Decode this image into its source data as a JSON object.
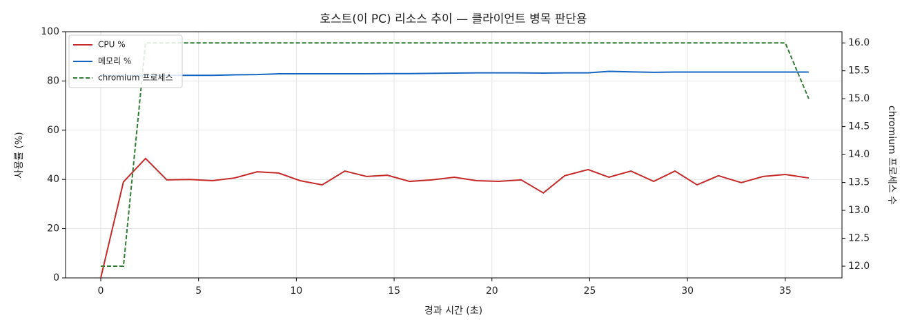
{
  "chart_data": {
    "type": "line",
    "title": "호스트(이 PC) 리소스 추이 — 클라이언트 병목 판단용",
    "x_label": "경과 시간 (초)",
    "y_label": "사용률 (%)",
    "y2_label": "chromium 프로세스 수",
    "x": [
      0,
      1.16,
      2.29,
      3.38,
      4.55,
      5.71,
      6.84,
      8.0,
      9.09,
      10.19,
      11.32,
      12.48,
      13.6,
      14.66,
      15.79,
      16.92,
      18.08,
      19.21,
      20.34,
      21.5,
      22.63,
      23.72,
      24.92,
      25.98,
      27.11,
      28.27,
      29.36,
      30.49,
      31.58,
      32.75,
      33.87,
      35.0,
      36.2
    ],
    "series": [
      {
        "name": "CPU %",
        "color": "#c62828",
        "linestyle": "solid",
        "values": [
          0,
          39,
          48.5,
          39.8,
          40,
          39.5,
          40.6,
          43.1,
          42.6,
          39.5,
          37.8,
          43.4,
          41.2,
          41.7,
          39.2,
          39.8,
          40.9,
          39.5,
          39.2,
          39.8,
          34.5,
          41.5,
          44,
          40.9,
          43.4,
          39.2,
          43.4,
          37.8,
          41.5,
          38.7,
          41.2,
          42,
          40.6
        ]
      },
      {
        "name": "메모리 %",
        "color": "#1565c0",
        "linestyle": "solid",
        "values": [
          82.2,
          82.2,
          82.3,
          82.3,
          82.3,
          82.3,
          82.5,
          82.6,
          82.9,
          82.9,
          82.9,
          82.9,
          82.9,
          83.0,
          83.0,
          83.1,
          83.2,
          83.3,
          83.3,
          83.3,
          83.2,
          83.3,
          83.3,
          83.9,
          83.7,
          83.5,
          83.6,
          83.6,
          83.6,
          83.6,
          83.6,
          83.6,
          83.6
        ]
      },
      {
        "name": "chromium 프로세스",
        "color": "#2e7d32",
        "linestyle": "dashed",
        "axis": "y2",
        "values": [
          12,
          12,
          16,
          16,
          16,
          16,
          16,
          16,
          16,
          16,
          16,
          16,
          16,
          16,
          16,
          16,
          16,
          16,
          16,
          16,
          16,
          16,
          16,
          16,
          16,
          16,
          16,
          16,
          16,
          16,
          16,
          16,
          15
        ]
      }
    ],
    "xlim": [
      -1.8,
      37.9
    ],
    "xticks": [
      0,
      5,
      10,
      15,
      20,
      25,
      30,
      35
    ],
    "ylim": [
      0,
      100
    ],
    "yticks": [
      0,
      20,
      40,
      60,
      80,
      100
    ],
    "y2lim": [
      11.79,
      16.2
    ],
    "y2ticks": [
      {
        "value": 12,
        "label": "12.0"
      },
      {
        "value": 12.5,
        "label": "12.5"
      },
      {
        "value": 13,
        "label": "13.0"
      },
      {
        "value": 13.5,
        "label": "13.5"
      },
      {
        "value": 14,
        "label": "14.0"
      },
      {
        "value": 14.5,
        "label": "14.5"
      },
      {
        "value": 15,
        "label": "15.0"
      },
      {
        "value": 15.5,
        "label": "15.5"
      },
      {
        "value": 16,
        "label": "16.0"
      }
    ],
    "grid": true,
    "legend": "upper-left"
  }
}
